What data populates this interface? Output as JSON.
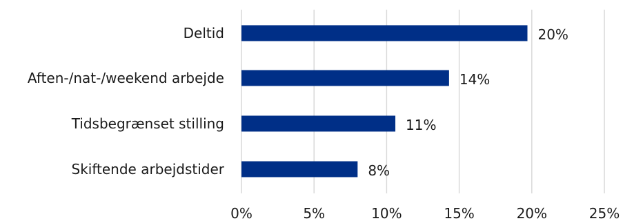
{
  "chart_data": {
    "type": "bar",
    "orientation": "horizontal",
    "categories": [
      "Deltid",
      "Aften-/nat-/weekend arbejde",
      "Tidsbegrænset stilling",
      "Skiftende arbejdstider"
    ],
    "values": [
      19.7,
      14.3,
      10.6,
      8.0
    ],
    "data_labels": [
      "20%",
      "14%",
      "11%",
      "8%"
    ],
    "xlim": [
      0,
      25
    ],
    "x_ticks": [
      0,
      5,
      10,
      15,
      20,
      25
    ],
    "x_tick_labels": [
      "0%",
      "5%",
      "10%",
      "15%",
      "20%",
      "25%"
    ],
    "bar_color": "#002f87",
    "grid": true,
    "legend": "none"
  }
}
